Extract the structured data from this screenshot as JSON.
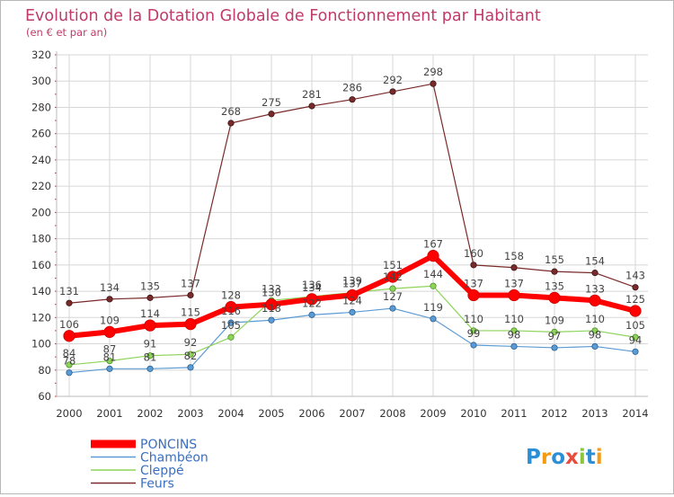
{
  "chart_data": {
    "type": "line",
    "title": "Evolution de la Dotation Globale de Fonctionnement par Habitant",
    "subtitle": "(en € et par an)",
    "xlabel": "",
    "ylabel": "",
    "ylim": [
      60,
      320
    ],
    "yticks": [
      60,
      80,
      100,
      120,
      140,
      160,
      180,
      200,
      220,
      240,
      260,
      280,
      300,
      320
    ],
    "grid": true,
    "legend": "bottom-left",
    "categories": [
      "2000",
      "2001",
      "2002",
      "2003",
      "2004",
      "2005",
      "2006",
      "2007",
      "2008",
      "2009",
      "2010",
      "2011",
      "2012",
      "2013",
      "2014"
    ],
    "series": [
      {
        "name": "Feurs",
        "color": "#7a2a2a",
        "values": [
          131,
          134,
          135,
          137,
          268,
          275,
          281,
          286,
          292,
          298,
          160,
          158,
          155,
          154,
          143
        ]
      },
      {
        "name": "Chambéon",
        "color": "#5b9bd5",
        "values": [
          78,
          81,
          81,
          82,
          116,
          118,
          122,
          124,
          127,
          119,
          99,
          98,
          97,
          98,
          94
        ]
      },
      {
        "name": "Cleppé",
        "color": "#8ed45a",
        "values": [
          84,
          87,
          91,
          92,
          105,
          133,
          136,
          139,
          142,
          144,
          110,
          110,
          109,
          110,
          105
        ]
      },
      {
        "name": "PONCINS",
        "color": "#ff0000",
        "values": [
          106,
          109,
          114,
          115,
          128,
          130,
          134,
          137,
          151,
          167,
          137,
          137,
          135,
          133,
          125
        ]
      }
    ]
  },
  "logo": {
    "text": "Proxiti"
  }
}
